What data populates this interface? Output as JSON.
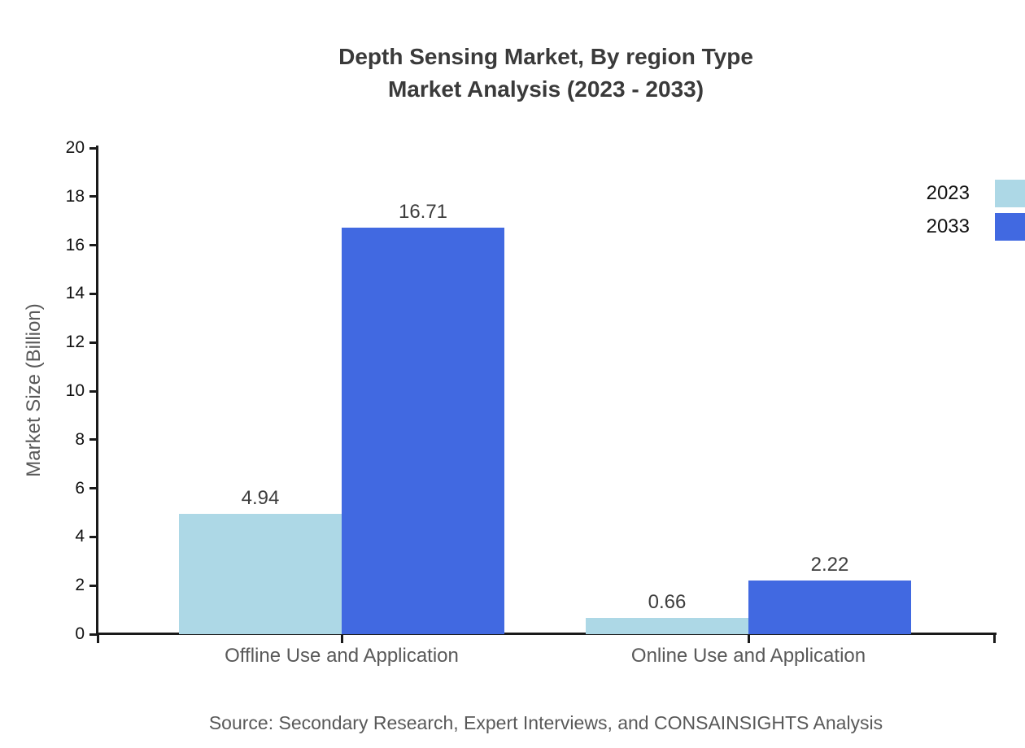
{
  "chart_data": {
    "type": "bar",
    "title_line1": "Depth Sensing Market, By region Type",
    "title_line2": "Market Analysis (2023 - 2033)",
    "categories": [
      "Offline Use and Application",
      "Online Use and Application"
    ],
    "series": [
      {
        "name": "2023",
        "color": "#ADD8E6",
        "values": [
          4.94,
          0.66
        ]
      },
      {
        "name": "2033",
        "color": "#4169E1",
        "values": [
          16.71,
          2.22
        ]
      }
    ],
    "value_labels": [
      [
        "4.94",
        "16.71"
      ],
      [
        "0.66",
        "2.22"
      ]
    ],
    "ylabel": "Market Size (Billion)",
    "xlabel": "",
    "ylim": [
      0,
      20
    ],
    "yticks": [
      0,
      2,
      4,
      6,
      8,
      10,
      12,
      14,
      16,
      18,
      20
    ],
    "grid": false,
    "legend_position": "right-top",
    "axis_color": "#1a1a1a",
    "title_color": "#3a3a3a",
    "text_gray": "#595959",
    "source": "Source: Secondary Research, Expert Interviews, and CONSAINSIGHTS Analysis"
  }
}
